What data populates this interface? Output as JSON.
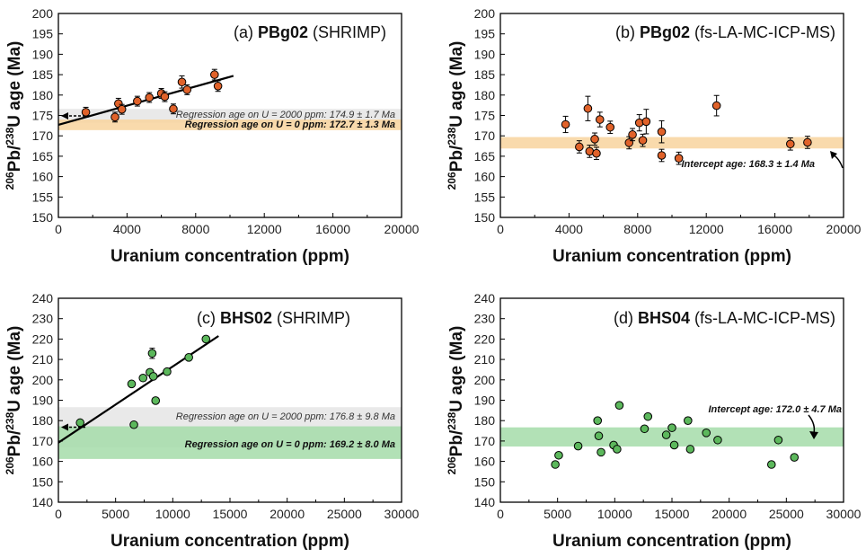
{
  "chart_data": [
    {
      "type": "scatter",
      "panel": "a",
      "title_prefix": "(a)",
      "title_bold": "PBg02",
      "title_suffix": "(SHRIMP)",
      "xlabel": "Uranium concentration (ppm)",
      "ylabel_parts": [
        "206",
        "Pb/",
        "238",
        "U age (Ma)"
      ],
      "xlim": [
        0,
        20000
      ],
      "ylim": [
        150,
        200
      ],
      "xticks": [
        "0",
        "4000",
        "8000",
        "12000",
        "16000",
        "20000"
      ],
      "xtick_values": [
        0,
        4000,
        8000,
        12000,
        16000,
        20000
      ],
      "yticks": [
        "150",
        "155",
        "160",
        "165",
        "170",
        "175",
        "180",
        "185",
        "190",
        "195",
        "200"
      ],
      "ytick_values": [
        150,
        155,
        160,
        165,
        170,
        175,
        180,
        185,
        190,
        195,
        200
      ],
      "point_color": "#e0622a",
      "x": [
        1600,
        3300,
        3500,
        3700,
        4600,
        5300,
        6000,
        6200,
        6700,
        7200,
        7500,
        9100,
        9300
      ],
      "y": [
        175.8,
        174.6,
        177.9,
        176.5,
        178.5,
        179.4,
        180.4,
        179.6,
        176.6,
        183.2,
        181.3,
        185.0,
        182.2
      ],
      "err": [
        1.2,
        1.2,
        1.3,
        1.2,
        1.2,
        1.2,
        1.2,
        1.2,
        1.2,
        1.5,
        1.2,
        1.3,
        1.3
      ],
      "line": {
        "x": [
          0,
          10200
        ],
        "y": [
          172.7,
          184.7
        ],
        "color": "#000000"
      },
      "bands": [
        {
          "center": 174.9,
          "half_width": 1.7,
          "color": "#e2e2e2"
        },
        {
          "center": 172.7,
          "half_width": 1.3,
          "color": "#f8d39e"
        }
      ],
      "arrow": {
        "y": 174.9
      },
      "annotations": [
        {
          "text": "Regression age on U = 2000 ppm: 174.9 ± 1.7 Ma",
          "bold": false
        },
        {
          "text": "Regression age on U = 0 ppm: 172.7 ± 1.3 Ma",
          "bold": true
        }
      ]
    },
    {
      "type": "scatter",
      "panel": "b",
      "title_prefix": "(b)",
      "title_bold": "PBg02",
      "title_suffix": "(fs-LA-MC-ICP-MS)",
      "xlabel": "Uranium concentration (ppm)",
      "ylabel_parts": [
        "206",
        "Pb/",
        "238",
        "U age (Ma)"
      ],
      "xlim": [
        0,
        20000
      ],
      "ylim": [
        150,
        200
      ],
      "xticks": [
        "0",
        "4000",
        "8000",
        "12000",
        "16000",
        "20000"
      ],
      "xtick_values": [
        0,
        4000,
        8000,
        12000,
        16000,
        20000
      ],
      "yticks": [
        "150",
        "155",
        "160",
        "165",
        "170",
        "175",
        "180",
        "185",
        "190",
        "195",
        "200"
      ],
      "ytick_values": [
        150,
        155,
        160,
        165,
        170,
        175,
        180,
        185,
        190,
        195,
        200
      ],
      "point_color": "#e0622a",
      "x": [
        3800,
        4600,
        5100,
        5200,
        5500,
        5600,
        5800,
        6400,
        7500,
        7700,
        8100,
        8300,
        8500,
        9400,
        9400,
        10400,
        12600,
        16900,
        17900
      ],
      "y": [
        172.8,
        167.3,
        176.7,
        166.2,
        169.2,
        165.7,
        174.0,
        172.1,
        168.3,
        170.3,
        173.2,
        168.9,
        173.5,
        165.2,
        171.0,
        164.5,
        177.4,
        168.0,
        168.4
      ],
      "err": [
        2.0,
        1.5,
        3.0,
        1.5,
        1.5,
        1.5,
        1.8,
        1.5,
        1.5,
        1.5,
        2.0,
        1.5,
        3.0,
        1.5,
        2.7,
        1.5,
        2.5,
        1.5,
        1.5
      ],
      "bands": [
        {
          "center": 168.3,
          "half_width": 1.4,
          "color": "#f8d39e"
        }
      ],
      "annotations": [
        {
          "text": "Intercept age: 168.3 ± 1.4 Ma",
          "bold": true
        }
      ]
    },
    {
      "type": "scatter",
      "panel": "c",
      "title_prefix": "(c)",
      "title_bold": "BHS02",
      "title_suffix": "(SHRIMP)",
      "xlabel": "Uranium concentration (ppm)",
      "ylabel_parts": [
        "206",
        "Pb/",
        "238",
        "U age (Ma)"
      ],
      "xlim": [
        0,
        30000
      ],
      "ylim": [
        140,
        240
      ],
      "xticks": [
        "0",
        "5000",
        "10000",
        "15000",
        "20000",
        "25000",
        "30000"
      ],
      "xtick_values": [
        0,
        5000,
        10000,
        15000,
        20000,
        25000,
        30000
      ],
      "yticks": [
        "140",
        "150",
        "160",
        "170",
        "180",
        "190",
        "200",
        "210",
        "220",
        "230",
        "240"
      ],
      "ytick_values": [
        140,
        150,
        160,
        170,
        180,
        190,
        200,
        210,
        220,
        230,
        240
      ],
      "point_color": "#5cb85c",
      "x": [
        1900,
        6400,
        6600,
        7400,
        8000,
        8200,
        8300,
        8500,
        9500,
        11400,
        12900
      ],
      "y": [
        179.0,
        198.0,
        178.0,
        200.9,
        203.7,
        213.0,
        201.7,
        189.8,
        204.0,
        211.0,
        220.0
      ],
      "err": [
        0,
        0,
        0,
        0,
        0,
        2.5,
        0,
        0,
        0,
        0,
        0
      ],
      "line": {
        "x": [
          0,
          14000
        ],
        "y": [
          169.2,
          221.5
        ],
        "color": "#000000"
      },
      "bands": [
        {
          "center": 176.8,
          "half_width": 9.8,
          "color": "#e2e2e2"
        },
        {
          "center": 169.2,
          "half_width": 8.0,
          "color": "#a5dca9"
        }
      ],
      "arrow": {
        "y": 176.8
      },
      "annotations": [
        {
          "text": "Regression age on U = 2000 ppm: 176.8 ± 9.8 Ma",
          "bold": false
        },
        {
          "text": "Regression age on U = 0 ppm: 169.2 ± 8.0 Ma",
          "bold": true
        }
      ]
    },
    {
      "type": "scatter",
      "panel": "d",
      "title_prefix": "(d)",
      "title_bold": "BHS04",
      "title_suffix": "(fs-LA-MC-ICP-MS)",
      "xlabel": "Uranium concentration (ppm)",
      "ylabel_parts": [
        "206",
        "Pb/",
        "238",
        "U age (Ma)"
      ],
      "xlim": [
        0,
        30000
      ],
      "ylim": [
        140,
        240
      ],
      "xticks": [
        "0",
        "5000",
        "10000",
        "15000",
        "20000",
        "25000",
        "30000"
      ],
      "xtick_values": [
        0,
        5000,
        10000,
        15000,
        20000,
        25000,
        30000
      ],
      "yticks": [
        "140",
        "150",
        "160",
        "170",
        "180",
        "190",
        "200",
        "210",
        "220",
        "230",
        "240"
      ],
      "ytick_values": [
        140,
        150,
        160,
        170,
        180,
        190,
        200,
        210,
        220,
        230,
        240
      ],
      "point_color": "#5cb85c",
      "x": [
        4800,
        5100,
        6800,
        8500,
        8600,
        8800,
        9900,
        10200,
        10400,
        12600,
        12900,
        14500,
        15000,
        15200,
        16400,
        16600,
        18000,
        19000,
        23700,
        24300,
        25700
      ],
      "y": [
        158.5,
        163.0,
        167.5,
        180.0,
        172.5,
        164.5,
        168.0,
        166.0,
        187.5,
        176.0,
        182.0,
        173.0,
        176.5,
        168.0,
        180.0,
        166.0,
        174.0,
        170.5,
        158.5,
        170.5,
        162.0
      ],
      "err": [
        0,
        0,
        0,
        0,
        0,
        0,
        0,
        0,
        0,
        0,
        0,
        0,
        0,
        0,
        1.5,
        0,
        0,
        0,
        0,
        0,
        0
      ],
      "bands": [
        {
          "center": 172.0,
          "half_width": 4.7,
          "color": "#a5dca9"
        }
      ],
      "annotations": [
        {
          "text": "Intercept age: 172.0 ± 4.7 Ma",
          "bold": true
        }
      ]
    }
  ]
}
